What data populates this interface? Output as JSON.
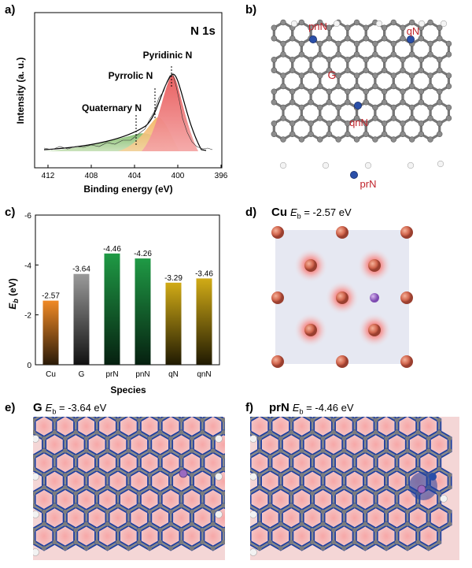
{
  "panels": {
    "a": {
      "label": "a)",
      "title": "N 1s",
      "xlabel": "Binding energy (eV)",
      "ylabel": "Intensity (a. u.)",
      "xticks": [
        "412",
        "408",
        "404",
        "400",
        "396"
      ],
      "peaks": [
        "Pyridinic N",
        "Pyrrolic N",
        "Quaternary N"
      ],
      "colors": {
        "pyridinic": "#e8595a",
        "pyrrolic": "#f2b15c",
        "quaternary": "#7cb965"
      }
    },
    "b": {
      "label": "b)",
      "site_labels": {
        "pnN": "pnN",
        "qN": "qN",
        "G": "G",
        "qnN": "qnN",
        "prN": "prN"
      }
    },
    "c": {
      "label": "c)"
    },
    "d": {
      "label": "d)",
      "species": "Cu",
      "eb_value": "= -2.57 eV"
    },
    "e": {
      "label": "e)",
      "species": "G",
      "eb_value": "= -3.64 eV"
    },
    "f": {
      "label": "f)",
      "species": "prN",
      "eb_value": "= -4.46 eV"
    }
  },
  "chart_data": {
    "type": "bar",
    "categories": [
      "Cu",
      "G",
      "prN",
      "pnN",
      "qN",
      "qnN"
    ],
    "values": [
      -2.57,
      -3.64,
      -4.46,
      -4.26,
      -3.29,
      -3.46
    ],
    "value_labels": [
      "-2.57",
      "-3.64",
      "-4.46",
      "-4.26",
      "-3.29",
      "-3.46"
    ],
    "xlabel": "Species",
    "ylabel": "E_b (eV)",
    "ylim": [
      0,
      -6
    ],
    "yticks": [
      "0",
      "-2",
      "-4",
      "-6"
    ],
    "colors": [
      "#e07a1e",
      "#8a8a8a",
      "#1e8a3c",
      "#1e8a3c",
      "#c9a20f",
      "#c9a20f"
    ],
    "grid": false
  }
}
